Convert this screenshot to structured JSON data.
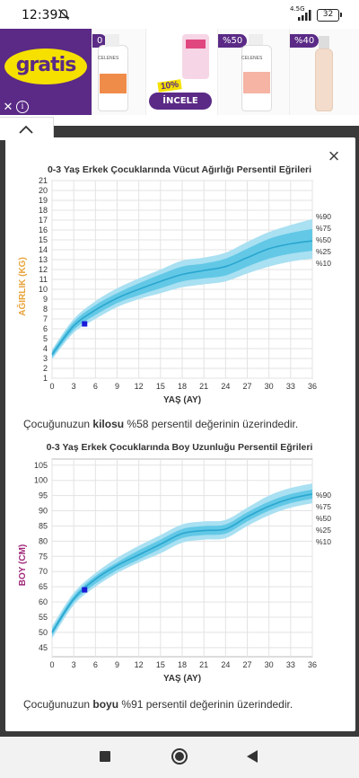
{
  "status_bar": {
    "time": "12:39",
    "network": "4.5G",
    "battery": "32",
    "icons": [
      "mute-icon",
      "signal-icon",
      "battery-icon"
    ]
  },
  "ad": {
    "brand": "gratis",
    "badges": [
      "0",
      "%50",
      "%40"
    ],
    "promo": "10%",
    "button": "İNCELE",
    "product_label_1": "CELENES",
    "product_label_2": "CELENES",
    "close_symbol": "✕",
    "info_symbol": "i"
  },
  "panel": {
    "close_symbol": "×"
  },
  "chart_data": [
    {
      "type": "area",
      "title": "0-3 Yaş Erkek Çocuklarında Vücut Ağırlığı Persentil Eğrileri",
      "xlabel": "YAŞ (AY)",
      "ylabel": "AĞIRLIK (KG)",
      "x_ticks": [
        0,
        3,
        6,
        9,
        12,
        15,
        18,
        21,
        24,
        27,
        30,
        33,
        36
      ],
      "y_ticks": [
        1,
        2,
        3,
        4,
        5,
        6,
        7,
        8,
        9,
        10,
        11,
        12,
        13,
        14,
        15,
        16,
        17,
        18,
        19,
        20,
        21
      ],
      "xlim": [
        0,
        36
      ],
      "ylim": [
        1,
        21
      ],
      "grid": true,
      "x": [
        0,
        3,
        6,
        9,
        12,
        15,
        18,
        21,
        24,
        27,
        30,
        33,
        36
      ],
      "series": [
        {
          "name": "%90",
          "values": [
            3.9,
            7.0,
            8.8,
            10.1,
            11.1,
            12.0,
            12.9,
            13.2,
            13.7,
            14.8,
            15.8,
            16.5,
            17.1
          ]
        },
        {
          "name": "%75",
          "values": [
            3.7,
            6.7,
            8.4,
            9.6,
            10.6,
            11.5,
            12.3,
            12.6,
            13.1,
            14.1,
            15.1,
            15.7,
            16.1
          ]
        },
        {
          "name": "%50",
          "values": [
            3.4,
            6.3,
            7.9,
            9.1,
            10.0,
            10.8,
            11.5,
            11.9,
            12.3,
            13.2,
            14.1,
            14.6,
            14.9
          ]
        },
        {
          "name": "%25",
          "values": [
            3.1,
            5.9,
            7.4,
            8.6,
            9.4,
            10.1,
            10.8,
            11.1,
            11.4,
            12.3,
            13.1,
            13.6,
            13.9
          ]
        },
        {
          "name": "%10",
          "values": [
            2.9,
            5.6,
            7.0,
            8.2,
            9.0,
            9.6,
            10.2,
            10.5,
            10.8,
            11.6,
            12.3,
            12.8,
            13.1
          ]
        }
      ],
      "marker": {
        "x": 4.5,
        "y": 6.5
      },
      "caption_prefix": "Çocuğunuzun ",
      "caption_bold": "kilosu",
      "caption_suffix": " %58 persentil değerinin üzerindedir.",
      "ylabel_color": "#e8a33a"
    },
    {
      "type": "area",
      "title": "0-3 Yaş Erkek Çocuklarında Boy Uzunluğu Persentil Eğrileri",
      "xlabel": "YAŞ (AY)",
      "ylabel": "BOY (CM)",
      "x_ticks": [
        0,
        3,
        6,
        9,
        12,
        15,
        18,
        21,
        24,
        27,
        30,
        33,
        36
      ],
      "y_ticks": [
        45,
        50,
        55,
        60,
        65,
        70,
        75,
        80,
        85,
        90,
        95,
        100,
        105
      ],
      "xlim": [
        0,
        36
      ],
      "ylim": [
        42,
        107
      ],
      "grid": true,
      "x": [
        0,
        3,
        6,
        9,
        12,
        15,
        18,
        21,
        24,
        27,
        30,
        33,
        36
      ],
      "series": [
        {
          "name": "%90",
          "values": [
            52.0,
            63.0,
            69.5,
            74.5,
            78.5,
            82.0,
            85.5,
            86.5,
            87.0,
            91.0,
            95.0,
            97.5,
            99.0
          ]
        },
        {
          "name": "%75",
          "values": [
            51.0,
            62.0,
            68.5,
            73.0,
            77.0,
            80.5,
            84.0,
            85.0,
            85.5,
            89.5,
            93.0,
            95.5,
            97.0
          ]
        },
        {
          "name": "%50",
          "values": [
            50.0,
            61.0,
            67.5,
            72.0,
            75.5,
            79.0,
            82.5,
            83.5,
            84.0,
            88.0,
            91.5,
            94.0,
            95.5
          ]
        },
        {
          "name": "%25",
          "values": [
            49.0,
            60.0,
            66.0,
            70.5,
            74.0,
            77.5,
            81.0,
            82.0,
            82.5,
            86.5,
            90.0,
            92.5,
            94.0
          ]
        },
        {
          "name": "%10",
          "values": [
            48.0,
            59.0,
            65.0,
            69.5,
            73.0,
            76.0,
            79.5,
            80.5,
            81.0,
            85.0,
            88.5,
            91.0,
            92.5
          ]
        }
      ],
      "marker": {
        "x": 4.5,
        "y": 64
      },
      "caption_prefix": "Çocuğunuzun ",
      "caption_bold": "boyu",
      "caption_suffix": " %91 persentil değerinin üzerindedir.",
      "ylabel_color": "#a0287a"
    }
  ],
  "colors": {
    "band_outer": "#a9e0f2",
    "band_inner": "#62c8e6",
    "median": "#2aa6cf",
    "marker": "#1a1ad8",
    "brand_purple": "#5a2a86",
    "brand_yellow": "#f5e000"
  }
}
